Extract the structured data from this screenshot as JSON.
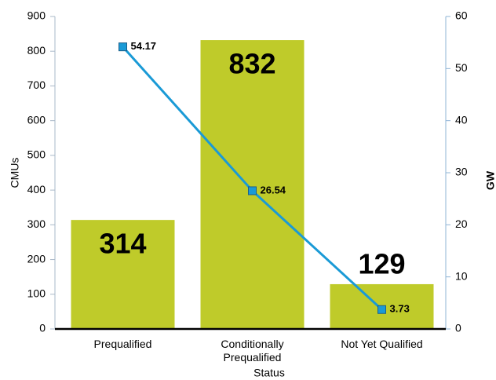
{
  "chart_data": {
    "type": "bar",
    "categories": [
      "Prequalified",
      "Conditionally Prequalified",
      "Not Yet Qualified"
    ],
    "x_label": "Status",
    "y_label": "CMUs",
    "y2_label": "GW",
    "series": [
      {
        "type": "bar",
        "color": "#bfcb2a",
        "values": [
          314,
          832,
          129
        ]
      },
      {
        "type": "line",
        "axis": "y2",
        "color": "#1a9ad6",
        "values": [
          54.17,
          26.54,
          3.73
        ]
      }
    ],
    "ylim": [
      0,
      900
    ],
    "yticks": [
      0,
      100,
      200,
      300,
      400,
      500,
      600,
      700,
      800,
      900
    ],
    "y2lim": [
      0,
      60
    ],
    "y2ticks": [
      0,
      10,
      20,
      30,
      40,
      50,
      60
    ]
  }
}
